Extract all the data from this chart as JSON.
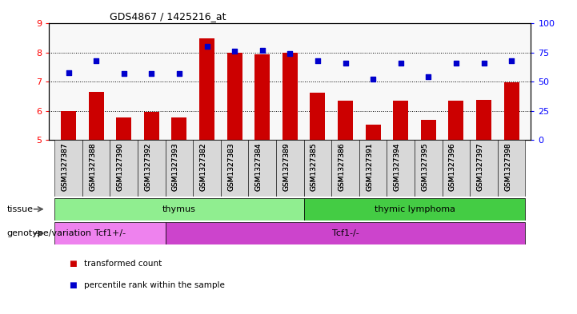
{
  "title": "GDS4867 / 1425216_at",
  "samples": [
    "GSM1327387",
    "GSM1327388",
    "GSM1327390",
    "GSM1327392",
    "GSM1327393",
    "GSM1327382",
    "GSM1327383",
    "GSM1327384",
    "GSM1327389",
    "GSM1327385",
    "GSM1327386",
    "GSM1327391",
    "GSM1327394",
    "GSM1327395",
    "GSM1327396",
    "GSM1327397",
    "GSM1327398"
  ],
  "bar_values": [
    6.0,
    6.65,
    5.78,
    5.96,
    5.78,
    8.48,
    8.0,
    7.95,
    8.0,
    6.62,
    6.35,
    5.52,
    6.35,
    5.68,
    6.35,
    6.38,
    6.97
  ],
  "dot_values": [
    7.32,
    7.72,
    7.28,
    7.28,
    7.28,
    8.22,
    8.06,
    8.08,
    7.96,
    7.72,
    7.63,
    7.08,
    7.63,
    7.18,
    7.63,
    7.63,
    7.72
  ],
  "bar_color": "#cc0000",
  "dot_color": "#0000cc",
  "ylim_left": [
    5,
    9
  ],
  "ylim_right": [
    0,
    100
  ],
  "yticks_left": [
    5,
    6,
    7,
    8,
    9
  ],
  "yticks_right": [
    0,
    25,
    50,
    75,
    100
  ],
  "tissue_groups": [
    {
      "label": "thymus",
      "start": 0,
      "end": 9,
      "color": "#90ee90"
    },
    {
      "label": "thymic lymphoma",
      "start": 9,
      "end": 17,
      "color": "#44cc44"
    }
  ],
  "genotype_groups": [
    {
      "label": "Tcf1+/-",
      "start": 0,
      "end": 4,
      "color": "#ee82ee"
    },
    {
      "label": "Tcf1-/-",
      "start": 4,
      "end": 17,
      "color": "#cc44cc"
    }
  ],
  "tissue_label": "tissue",
  "genotype_label": "genotype/variation",
  "legend_items": [
    {
      "color": "#cc0000",
      "label": "transformed count"
    },
    {
      "color": "#0000cc",
      "label": "percentile rank within the sample"
    }
  ],
  "bg_color": "#f0f0f0"
}
